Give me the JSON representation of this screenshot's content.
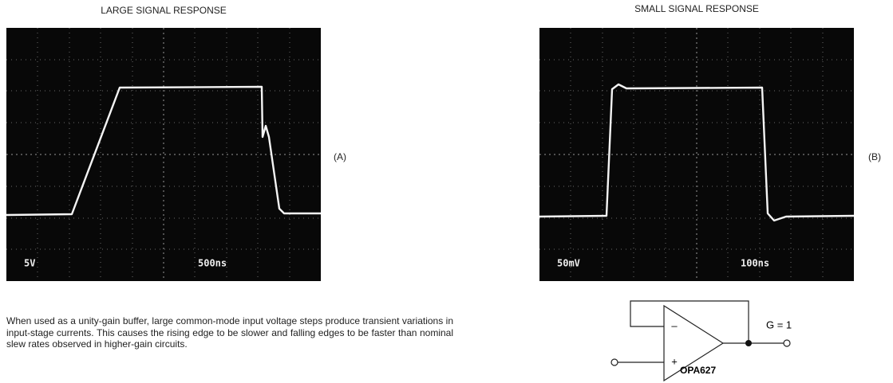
{
  "panels": [
    {
      "title": "LARGE SIGNAL RESPONSE",
      "tag": "(A)",
      "vertical_scale": "5V",
      "time_scale": "500ns"
    },
    {
      "title": "SMALL SIGNAL RESPONSE",
      "tag": "(B)",
      "vertical_scale": "50mV",
      "time_scale": "100ns"
    }
  ],
  "paragraph": "When used as a unity-gain buffer, large common-mode input voltage steps produce transient variations in input-stage currents. This causes the rising edge to be slower and falling edges to be faster than nominal slew rates observed in higher-gain circuits.",
  "circuit": {
    "minus": "–",
    "plus": "+",
    "gain": "G = 1",
    "part": "OPA627"
  }
}
